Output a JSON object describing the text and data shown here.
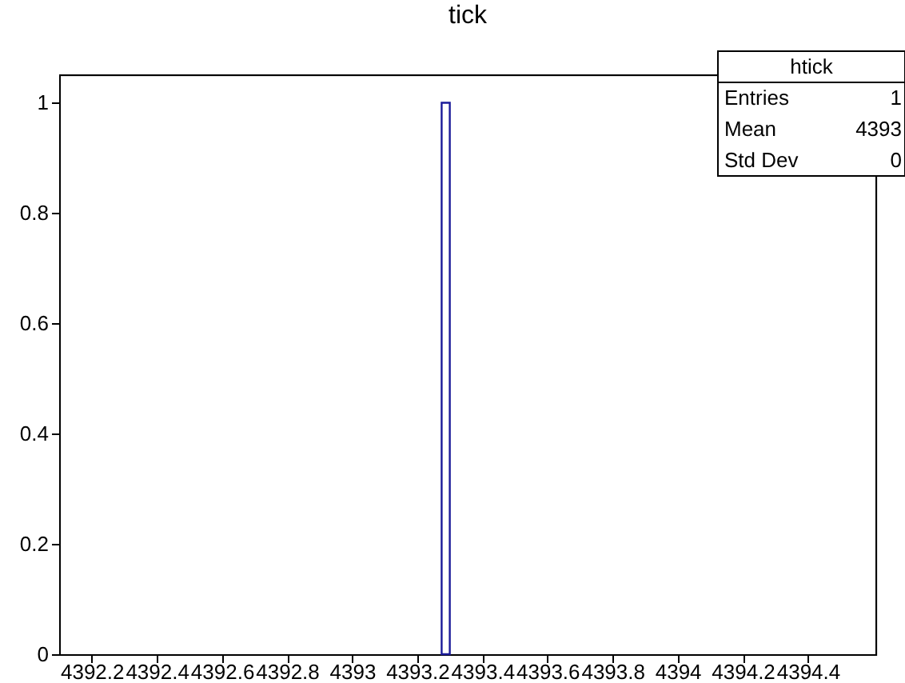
{
  "chart_data": {
    "type": "histogram",
    "title": "tick",
    "bins": [
      4393.275,
      4393.3
    ],
    "values": [
      1
    ],
    "color": "#1a1a99",
    "xlim": [
      4392.1,
      4394.61
    ],
    "xticks": [
      4392.2,
      4392.4,
      4392.6,
      4392.8,
      4393,
      4393.2,
      4393.4,
      4393.6,
      4393.8,
      4394,
      4394.2,
      4394.4
    ],
    "ylim": [
      0,
      1.05
    ],
    "yticks": [
      0,
      0.2,
      0.4,
      0.6,
      0.8,
      1
    ],
    "grid": false,
    "annotations": [
      "htick",
      "Entries",
      "1",
      "Mean",
      "4393",
      "Std Dev",
      "0"
    ]
  }
}
